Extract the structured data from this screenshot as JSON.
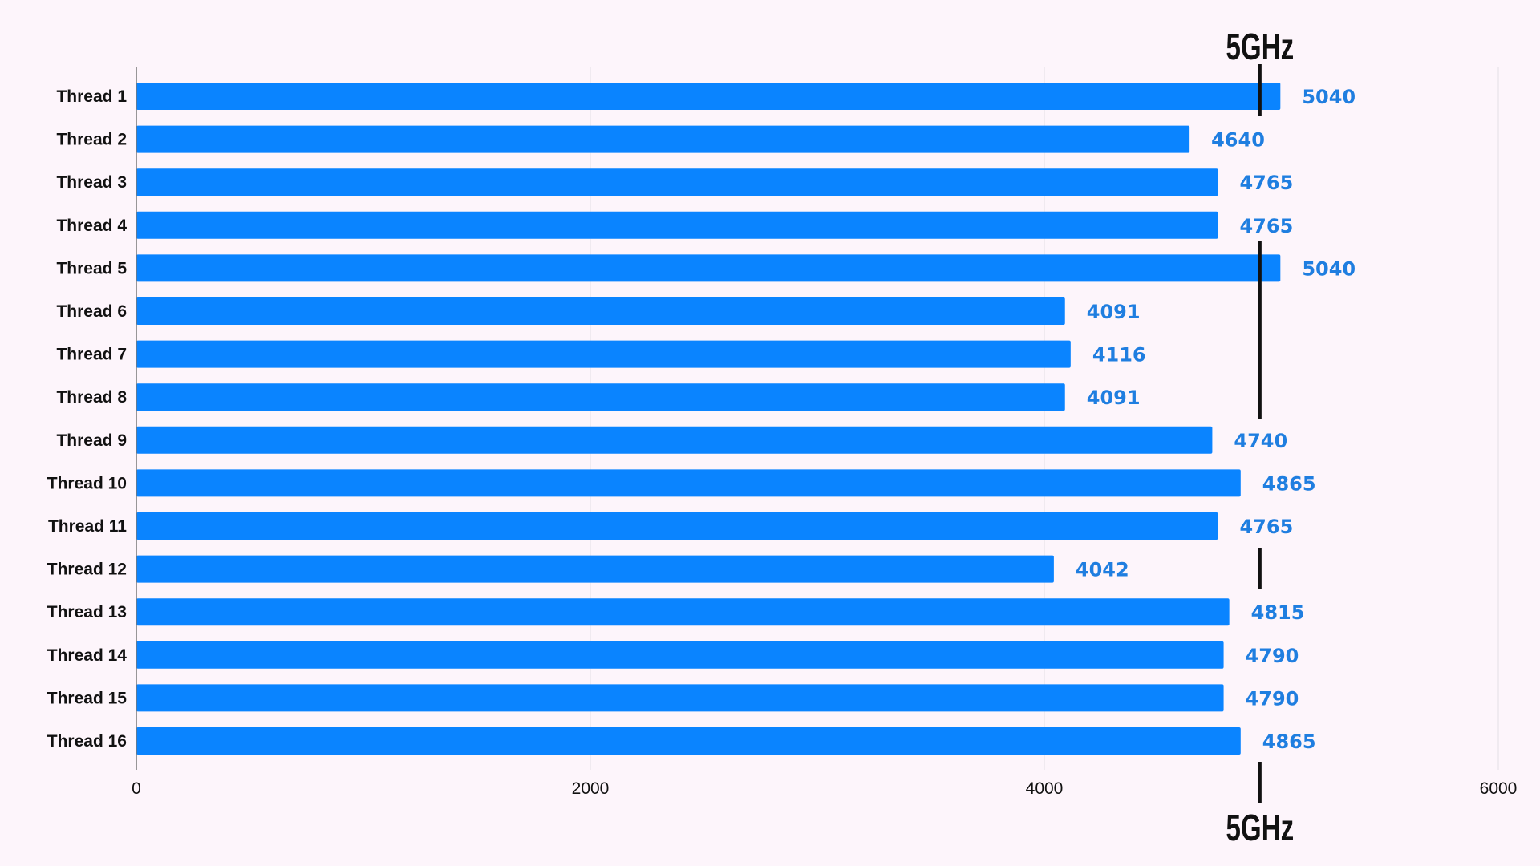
{
  "chart_data": {
    "type": "bar",
    "orientation": "horizontal",
    "categories": [
      "Thread 1",
      "Thread 2",
      "Thread 3",
      "Thread 4",
      "Thread 5",
      "Thread 6",
      "Thread 7",
      "Thread 8",
      "Thread 9",
      "Thread 10",
      "Thread 11",
      "Thread 12",
      "Thread 13",
      "Thread 14",
      "Thread 15",
      "Thread 16"
    ],
    "values": [
      5040,
      4640,
      4765,
      4765,
      5040,
      4091,
      4116,
      4091,
      4740,
      4865,
      4765,
      4042,
      4815,
      4790,
      4790,
      4865
    ],
    "xlim": [
      0,
      6000
    ],
    "xticks": [
      0,
      2000,
      4000,
      6000
    ],
    "grid": "vertical",
    "bar_color": "#0a84ff",
    "label_color": "#1f7ee0",
    "reference_line": {
      "value": 4950,
      "label": "5GHz",
      "color": "#111111"
    },
    "title": "",
    "xlabel": "",
    "ylabel": ""
  }
}
